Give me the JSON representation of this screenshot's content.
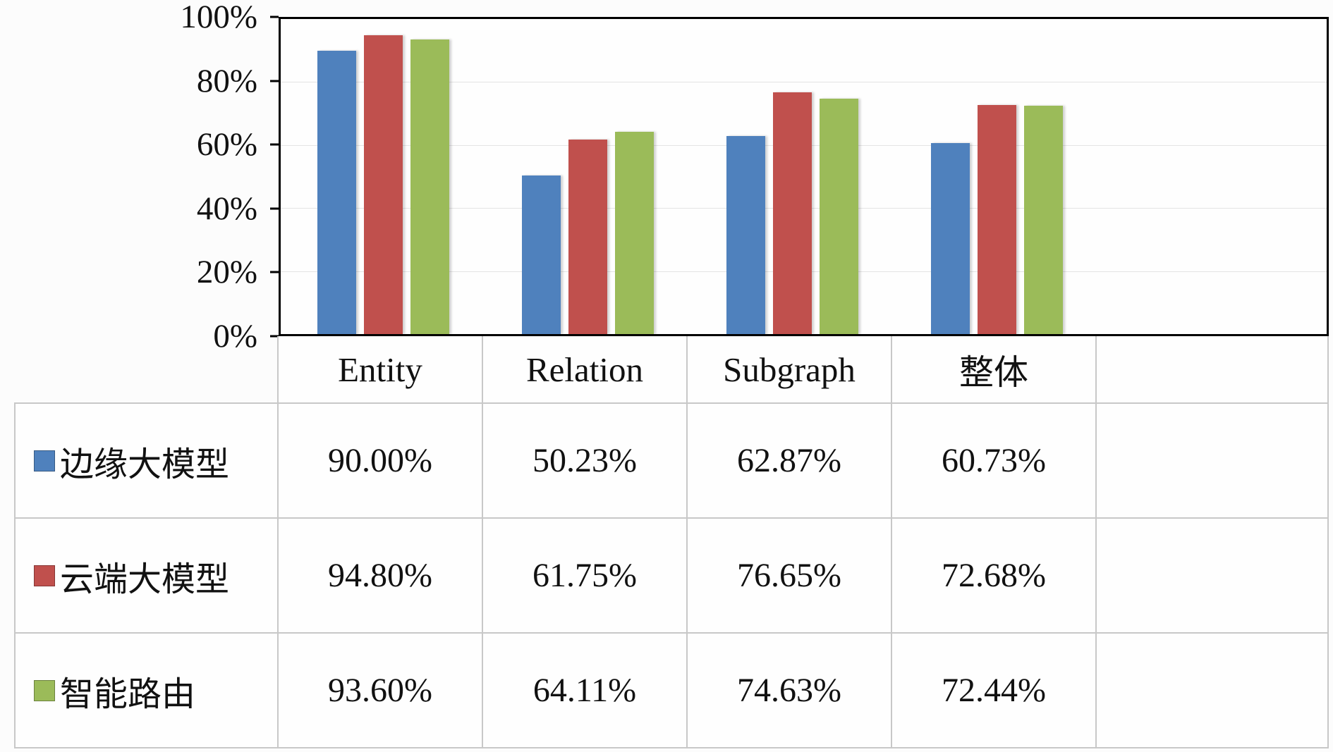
{
  "chart_data": {
    "type": "bar",
    "title": "",
    "xlabel": "",
    "ylabel": "",
    "categories": [
      "Entity",
      "Relation",
      "Subgraph",
      "整体"
    ],
    "series": [
      {
        "name": "边缘大模型",
        "color": "#4F81BD",
        "values": [
          90.0,
          50.23,
          62.87,
          60.73
        ],
        "value_labels": [
          "90.00%",
          "50.23%",
          "62.87%",
          "60.73%"
        ]
      },
      {
        "name": "云端大模型",
        "color": "#C0504D",
        "values": [
          94.8,
          61.75,
          76.65,
          72.68
        ],
        "value_labels": [
          "94.80%",
          "61.75%",
          "76.65%",
          "72.68%"
        ]
      },
      {
        "name": "智能路由",
        "color": "#9BBB59",
        "values": [
          93.6,
          64.11,
          74.63,
          72.44
        ],
        "value_labels": [
          "93.60%",
          "64.11%",
          "74.63%",
          "72.44%"
        ]
      }
    ],
    "ylim": [
      0,
      100
    ],
    "ytick_values": [
      0,
      20,
      40,
      60,
      80,
      100
    ],
    "ytick_labels": [
      "0%",
      "20%",
      "40%",
      "60%",
      "80%",
      "100%"
    ],
    "grid": true,
    "legend_position": "table-below-with-values",
    "axis_color": "#000000",
    "table_border_color": "#c8c8c8"
  }
}
